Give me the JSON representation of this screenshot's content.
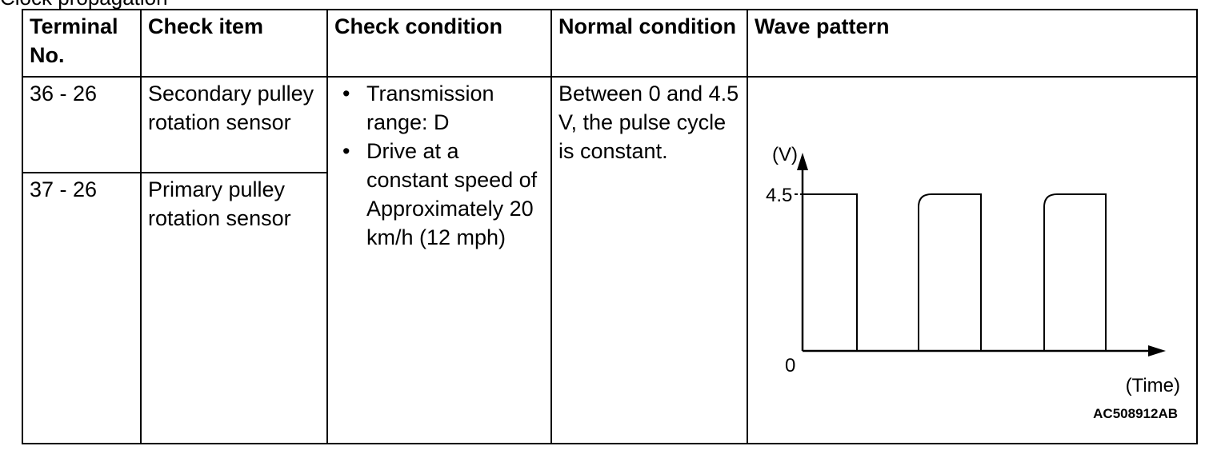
{
  "cut_text": "Clock propagation",
  "headers": {
    "terminal": "Terminal No.",
    "check_item": "Check item",
    "check_condition": "Check condition",
    "normal_condition": "Normal condition",
    "wave_pattern": "Wave pattern"
  },
  "rows": [
    {
      "terminal": "36 - 26",
      "check_item": "Secondary pulley rotation sensor"
    },
    {
      "terminal": "37 - 26",
      "check_item": "Primary pulley rotation sensor"
    }
  ],
  "check_condition": [
    "Transmission range: D",
    "Drive at a constant speed of Approximately 20 km/h (12 mph)"
  ],
  "normal_condition": "Between 0 and 4.5 V, the pulse cycle is constant.",
  "waveform": {
    "y_axis_label": "(V)",
    "x_axis_label": "(Time)",
    "y_high_label": "4.5",
    "y_zero_label": "0",
    "figure_code": "AC508912AB",
    "high_voltage": 4.5,
    "low_voltage": 0
  }
}
